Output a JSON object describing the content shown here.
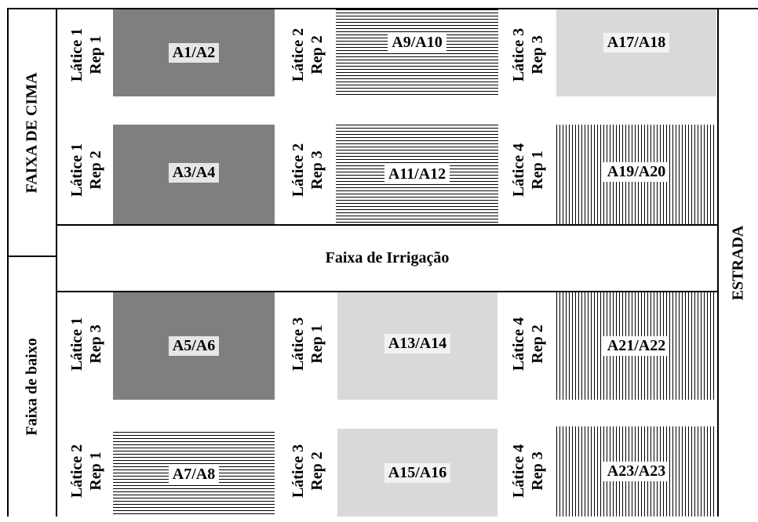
{
  "diagram": {
    "left_labels": {
      "top": "FAIXA DE CIMA",
      "bottom": "Faixa de baixo"
    },
    "right_label": "ESTRADA",
    "middle_band": "Faixa de Irrigação",
    "rows": [
      [
        {
          "latice": "Látice 1",
          "rep": "Rep 1",
          "plot": "A1/A2",
          "pattern": "dark"
        },
        {
          "latice": "Látice 2",
          "rep": "Rep 2",
          "plot": "A9/A10",
          "pattern": "horizontal-lines"
        },
        {
          "latice": "Látice 3",
          "rep": "Rep 3",
          "plot": "A17/A18",
          "pattern": "light"
        }
      ],
      [
        {
          "latice": "Látice 1",
          "rep": "Rep 2",
          "plot": "A3/A4",
          "pattern": "dark"
        },
        {
          "latice": "Látice 2",
          "rep": "Rep 3",
          "plot": "A11/A12",
          "pattern": "horizontal-lines"
        },
        {
          "latice": "Látice 4",
          "rep": "Rep 1",
          "plot": "A19/A20",
          "pattern": "vertical-lines"
        }
      ],
      [
        {
          "latice": "Látice 1",
          "rep": "Rep 3",
          "plot": "A5/A6",
          "pattern": "dark"
        },
        {
          "latice": "Látice 3",
          "rep": "Rep 1",
          "plot": "A13/A14",
          "pattern": "light"
        },
        {
          "latice": "Látice 4",
          "rep": "Rep 2",
          "plot": "A21/A22",
          "pattern": "vertical-lines"
        }
      ],
      [
        {
          "latice": "Látice 2",
          "rep": "Rep 1",
          "plot": "A7/A8",
          "pattern": "horizontal-lines"
        },
        {
          "latice": "Látice 3",
          "rep": "Rep 2",
          "plot": "A15/A16",
          "pattern": "light"
        },
        {
          "latice": "Látice 4",
          "rep": "Rep 3",
          "plot": "A23/A23",
          "pattern": "vertical-lines"
        }
      ]
    ]
  }
}
